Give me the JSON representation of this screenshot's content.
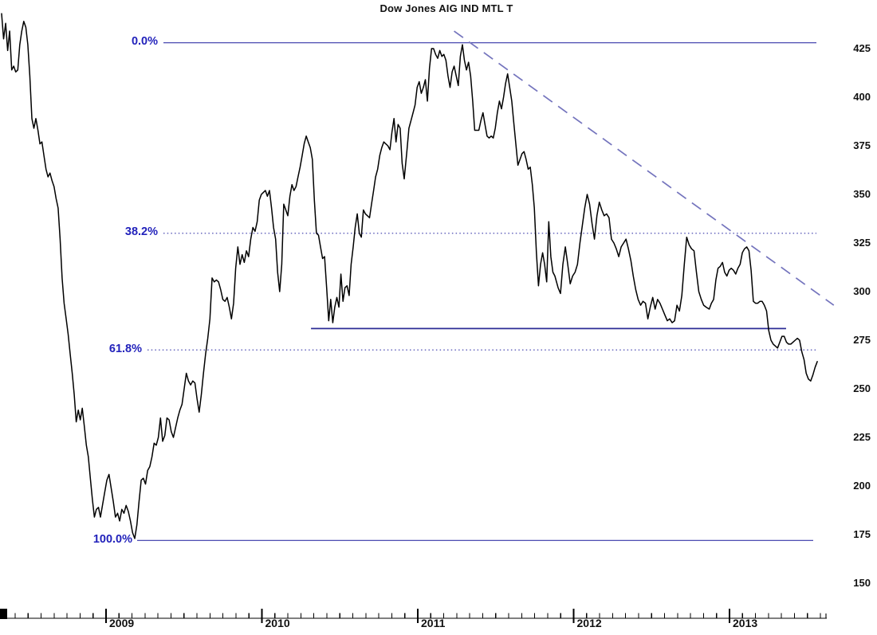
{
  "title": "Dow Jones AIG IND MTL T",
  "colors": {
    "price_line": "#000000",
    "fib_line": "#3535a8",
    "fib_label": "#2222bb",
    "support_line": "#2c2c96",
    "trend_line": "#7474bd",
    "axis": "#000000"
  },
  "chart_data": {
    "type": "line",
    "title": "Dow Jones AIG IND MTL T",
    "xlabel": "",
    "ylabel": "",
    "grid": false,
    "legend": "none",
    "x_axis": {
      "year_ticks": [
        2009,
        2010,
        2011,
        2012,
        2013
      ],
      "minor_ticks_per_year": 12,
      "range": [
        2008.33,
        2013.9
      ]
    },
    "y_axis": {
      "side": "right",
      "ticks": [
        425,
        400,
        375,
        350,
        325,
        300,
        275,
        250,
        225,
        200,
        175,
        150
      ],
      "range": [
        137,
        458
      ]
    },
    "fib_levels": [
      {
        "label": "0.0%",
        "value": 428,
        "style": "solid"
      },
      {
        "label": "38.2%",
        "value": 330,
        "style": "dotted"
      },
      {
        "label": "61.8%",
        "value": 270,
        "style": "dotted"
      },
      {
        "label": "100.0%",
        "value": 172,
        "style": "solid"
      }
    ],
    "support_line": {
      "value": 281,
      "t0": 2010.315,
      "t1": 2013.363,
      "style": "solid"
    },
    "trend_line": {
      "t0": 2011.233,
      "v0": 434,
      "t1": 2013.669,
      "v1": 293,
      "style": "dashed"
    },
    "series": [
      {
        "name": "Dow Jones AIG IND MTL T",
        "segments": [
          {
            "t0": 2008.33,
            "t1": 2008.99,
            "values": [
              443,
              430,
              438,
              424,
              434,
              414,
              416,
              413,
              414,
              427,
              434,
              439,
              436,
              427,
              411,
              389,
              384,
              389,
              383,
              376,
              377,
              370,
              363,
              359,
              361,
              357,
              354,
              348,
              343,
              327,
              307,
              294,
              286,
              278,
              268,
              258,
              247,
              233,
              239,
              234,
              240,
              231,
              221,
              215,
              204,
              193,
              184,
              188,
              189,
              184,
              190,
              196
            ]
          },
          {
            "t0": 2009.005,
            "t1": 2009.956,
            "values": [
              203,
              206,
              199,
              192,
              184,
              186,
              182,
              188,
              186,
              190,
              187,
              182,
              176,
              173,
              180,
              192,
              203,
              204,
              201,
              208,
              210,
              215,
              222,
              221,
              225,
              235,
              223,
              226,
              235,
              234,
              228,
              225,
              230,
              235,
              239,
              242,
              250,
              258,
              254,
              252,
              254,
              253,
              245,
              238,
              247,
              258,
              268,
              276,
              286,
              307,
              305,
              306,
              305,
              301,
              296,
              295,
              297,
              292,
              286,
              294,
              312,
              323,
              314,
              319,
              315,
              321,
              318,
              327,
              333,
              331
            ]
          },
          {
            "t0": 2009.97,
            "t1": 2010.913,
            "values": [
              336,
              347,
              350,
              351,
              352,
              349,
              352,
              343,
              333,
              327,
              310,
              300,
              314,
              345,
              342,
              339,
              349,
              355,
              352,
              354,
              359,
              364,
              370,
              376,
              380,
              377,
              374,
              368,
              347,
              330,
              329,
              323,
              317,
              318,
              302,
              285,
              296,
              284,
              292,
              297,
              292,
              309,
              295,
              302,
              303,
              298,
              314,
              323,
              333,
              340,
              330,
              328,
              342,
              340,
              339,
              338,
              345,
              352,
              359,
              363,
              370,
              374,
              377,
              376,
              375,
              373,
              382,
              389,
              377,
              386,
              384,
              366,
              358
            ]
          },
          {
            "t0": 2010.93,
            "t1": 2011.88,
            "values": [
              372,
              384,
              388,
              392,
              396,
              405,
              408,
              402,
              405,
              409,
              398,
              415,
              425,
              425,
              422,
              420,
              424,
              421,
              422,
              419,
              411,
              405,
              413,
              416,
              411,
              406,
              421,
              427,
              419,
              414,
              418,
              411,
              398,
              383,
              383,
              383,
              388,
              392,
              386,
              380,
              379,
              380,
              379,
              384,
              392,
              398,
              394,
              400,
              407,
              412,
              405,
              398,
              387,
              376,
              365,
              368,
              371,
              372,
              368,
              363,
              364,
              355,
              343,
              320,
              303,
              314,
              320,
              314,
              305,
              336,
              318,
              310,
              308
            ]
          },
          {
            "t0": 2011.9,
            "t1": 2012.85,
            "values": [
              302,
              299,
              314,
              323,
              314,
              304,
              308,
              310,
              314,
              325,
              334,
              343,
              350,
              345,
              335,
              327,
              339,
              346,
              342,
              339,
              340,
              338,
              327,
              325,
              322,
              318,
              323,
              325,
              327,
              322,
              316,
              308,
              301,
              296,
              293,
              295,
              294,
              286,
              292,
              297,
              291,
              296,
              294,
              291,
              288,
              285,
              286,
              284,
              285,
              293,
              290,
              298,
              314,
              328,
              324,
              322,
              321,
              310,
              300,
              296,
              293,
              292
            ]
          },
          {
            "t0": 2012.87,
            "t1": 2013.563,
            "values": [
              291,
              294,
              296,
              306,
              312,
              313,
              315,
              310,
              308,
              311,
              312,
              311,
              309,
              312,
              314,
              320,
              322,
              323,
              321,
              311,
              295,
              294,
              294,
              295,
              295,
              293,
              290,
              280,
              275,
              273,
              272,
              271,
              274,
              277,
              277,
              274,
              273,
              273,
              274,
              275,
              276,
              275,
              269,
              265,
              258,
              255,
              254,
              257,
              261,
              264
            ]
          }
        ]
      }
    ]
  }
}
